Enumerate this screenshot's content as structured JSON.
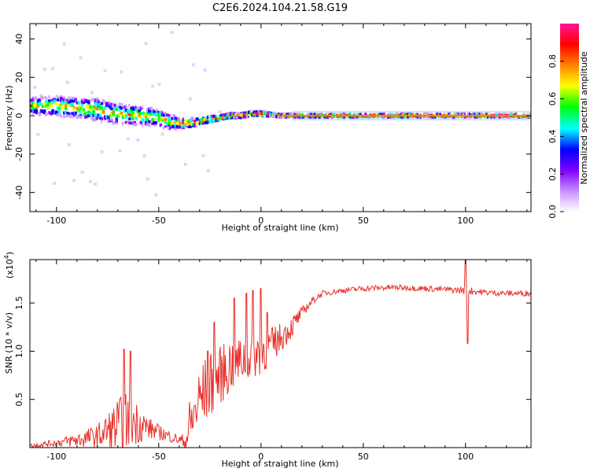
{
  "title": "C2E6.2024.104.21.58.G19",
  "chart_data": [
    {
      "type": "heatmap",
      "xlabel": "Height of straight line (km)",
      "ylabel": "Frequency (Hz)",
      "xlim": [
        -113,
        132
      ],
      "ylim": [
        -50,
        48
      ],
      "xticks": [
        -100,
        -50,
        0,
        50,
        100
      ],
      "yticks": [
        -40,
        -20,
        0,
        20,
        40
      ],
      "xtick_labels": [
        "-100",
        "-50",
        "0",
        "50",
        "100"
      ],
      "ytick_labels": [
        "-40",
        "-20",
        "0",
        "20",
        "40"
      ],
      "colorbar": {
        "label": "Normalized spectral amplitude",
        "range": [
          0,
          1
        ],
        "ticks": [
          0.0,
          0.2,
          0.4,
          0.6,
          0.8
        ],
        "tick_labels": [
          "0.0",
          "0.2",
          "0.4",
          "0.6",
          "0.8"
        ],
        "colors": [
          "#ffffff",
          "#cc99ff",
          "#7f00ff",
          "#0000ff",
          "#00ffff",
          "#00ff00",
          "#ffff00",
          "#ff8000",
          "#ff0000",
          "#ff1493"
        ]
      },
      "ridge": {
        "x": [
          -112,
          -100,
          -90,
          -80,
          -70,
          -60,
          -50,
          -45,
          -40,
          -35,
          -30,
          -25,
          -20,
          -15,
          -10,
          -5,
          0,
          5,
          10,
          20,
          40,
          60,
          80,
          100,
          131
        ],
        "y": [
          5,
          5,
          4,
          3,
          1,
          0,
          -1,
          -3,
          -4,
          -4,
          -3,
          -2,
          -1,
          0,
          0,
          1,
          1,
          0.5,
          0,
          0,
          0,
          0,
          0,
          0,
          0
        ],
        "spread": [
          5,
          6,
          6,
          7,
          6,
          6,
          5,
          5,
          3,
          3,
          2,
          2,
          1.5,
          1.5,
          1.5,
          1.5,
          1.5,
          1,
          1,
          1,
          1,
          1,
          1,
          1,
          1
        ]
      }
    },
    {
      "type": "line",
      "xlabel": "Height of straight line (km)",
      "ylabel": "SNR (10 * v/v)",
      "multiplier_label": "(x10",
      "multiplier_exp": "4",
      "xlim": [
        -113,
        132
      ],
      "ylim": [
        0,
        1.95
      ],
      "xticks": [
        -100,
        -50,
        0,
        50,
        100
      ],
      "yticks": [
        0.5,
        1.0,
        1.5
      ],
      "xtick_labels": [
        "-100",
        "-50",
        "0",
        "50",
        "100"
      ],
      "ytick_labels": [
        "0.5",
        "1.0",
        "1.5"
      ],
      "color": "#e8302a",
      "envelope": {
        "x": [
          -113,
          -100,
          -90,
          -80,
          -75,
          -70,
          -65,
          -60,
          -55,
          -50,
          -45,
          -40,
          -37,
          -35,
          -30,
          -25,
          -20,
          -15,
          -10,
          -5,
          0,
          5,
          10,
          15,
          20,
          25,
          30,
          40,
          50,
          60,
          70,
          80,
          90,
          100,
          110,
          120,
          132
        ],
        "y": [
          0.02,
          0.05,
          0.08,
          0.12,
          0.17,
          0.22,
          0.28,
          0.26,
          0.2,
          0.16,
          0.12,
          0.08,
          0.06,
          0.2,
          0.5,
          0.65,
          0.75,
          0.85,
          0.9,
          0.95,
          1.0,
          1.05,
          1.15,
          1.25,
          1.4,
          1.52,
          1.6,
          1.63,
          1.65,
          1.66,
          1.66,
          1.65,
          1.64,
          1.63,
          1.61,
          1.6,
          1.6
        ],
        "noise": [
          0.02,
          0.04,
          0.08,
          0.12,
          0.2,
          0.3,
          0.3,
          0.22,
          0.12,
          0.08,
          0.06,
          0.05,
          0.1,
          0.3,
          0.35,
          0.35,
          0.3,
          0.3,
          0.25,
          0.25,
          0.25,
          0.2,
          0.15,
          0.12,
          0.06,
          0.04,
          0.03,
          0.03,
          0.03,
          0.03,
          0.03,
          0.03,
          0.03,
          0.04,
          0.03,
          0.03,
          0.03
        ]
      },
      "spikes": [
        {
          "x": -67,
          "y": 1.02
        },
        {
          "x": -64,
          "y": 1.0
        },
        {
          "x": -26,
          "y": 1.0
        },
        {
          "x": -23,
          "y": 1.3
        },
        {
          "x": -13,
          "y": 1.55
        },
        {
          "x": -7,
          "y": 1.6
        },
        {
          "x": -4,
          "y": 1.63
        },
        {
          "x": 0,
          "y": 1.65
        },
        {
          "x": 3,
          "y": 1.4
        },
        {
          "x": 100,
          "y": 1.95
        },
        {
          "x": 101,
          "y": 1.08
        }
      ]
    }
  ]
}
